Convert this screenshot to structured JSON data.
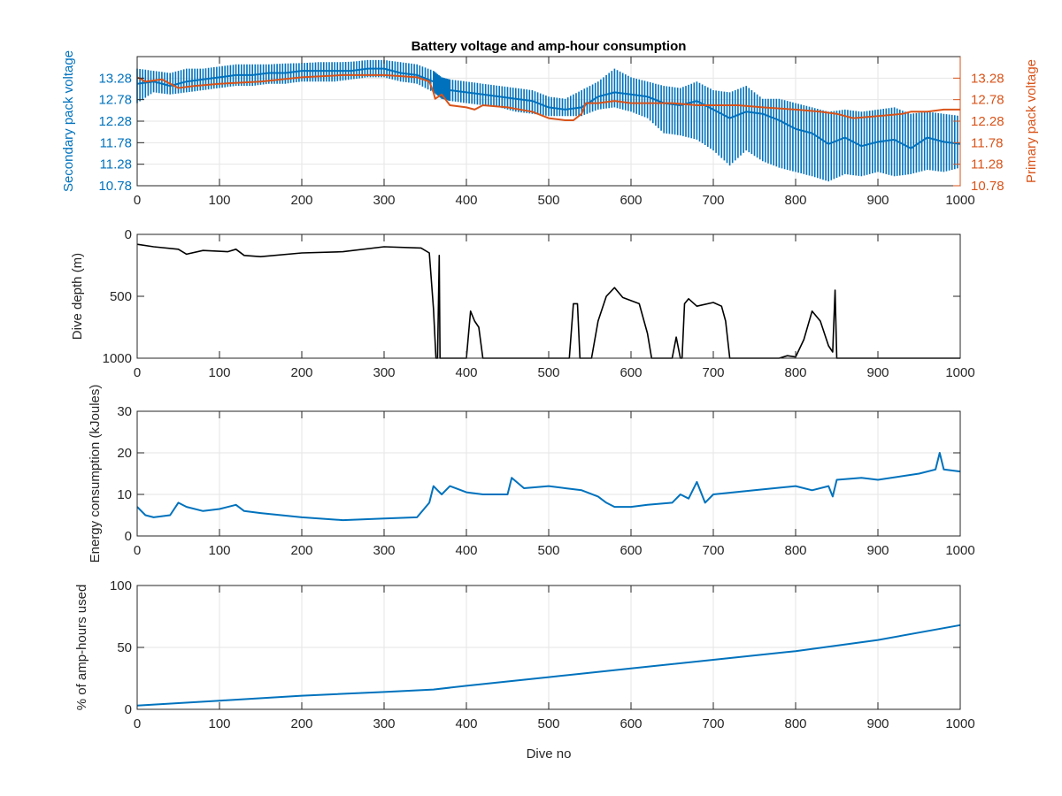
{
  "figure": {
    "title": "Battery voltage and amp-hour consumption"
  },
  "colors": {
    "blue": "#0072BD",
    "orange": "#D95319",
    "black": "#000000",
    "grid": "#e6e6e6",
    "axis": "#262626"
  },
  "chart_data": [
    {
      "type": "line",
      "title": "Battery voltage and amp-hour consumption",
      "xlabel": "",
      "ylabel": "Secondary pack voltage",
      "ylabel_right": "Primary pack voltage",
      "xlim": [
        0,
        1000
      ],
      "ylim": [
        10.78,
        13.78
      ],
      "x_ticks": [
        0,
        100,
        200,
        300,
        400,
        500,
        600,
        700,
        800,
        900,
        1000
      ],
      "y_ticks": [
        10.78,
        11.28,
        11.78,
        12.28,
        12.78,
        13.28
      ],
      "y_ticks_right": [
        10.78,
        11.28,
        11.78,
        12.28,
        12.78,
        13.28
      ],
      "grid": true,
      "series": [
        {
          "name": "",
          "axis": "left",
          "color": "#0072BD",
          "x": [
            0,
            20,
            40,
            60,
            80,
            100,
            120,
            140,
            160,
            180,
            200,
            220,
            240,
            260,
            280,
            300,
            320,
            340,
            360,
            370,
            380,
            400,
            420,
            440,
            460,
            480,
            500,
            520,
            540,
            560,
            580,
            600,
            620,
            640,
            660,
            680,
            700,
            720,
            740,
            760,
            780,
            800,
            820,
            840,
            860,
            880,
            900,
            920,
            940,
            960,
            980,
            1000
          ],
          "y": [
            13.15,
            13.2,
            13.1,
            13.2,
            13.25,
            13.3,
            13.35,
            13.35,
            13.4,
            13.4,
            13.45,
            13.45,
            13.45,
            13.45,
            13.5,
            13.5,
            13.4,
            13.35,
            13.2,
            13.0,
            13.0,
            12.95,
            12.9,
            12.85,
            12.8,
            12.75,
            12.6,
            12.55,
            12.6,
            12.85,
            12.95,
            12.9,
            12.85,
            12.7,
            12.65,
            12.75,
            12.55,
            12.35,
            12.5,
            12.45,
            12.3,
            12.1,
            12.0,
            11.75,
            11.9,
            11.7,
            11.8,
            11.85,
            11.65,
            11.9,
            11.8,
            11.75
          ],
          "y_min": [
            12.7,
            12.95,
            12.9,
            12.95,
            13.0,
            13.05,
            13.1,
            13.1,
            13.15,
            13.15,
            13.2,
            13.2,
            13.2,
            13.25,
            13.3,
            13.3,
            13.2,
            13.15,
            12.95,
            12.8,
            12.75,
            12.7,
            12.65,
            12.6,
            12.5,
            12.45,
            12.4,
            12.4,
            12.4,
            12.55,
            12.6,
            12.5,
            12.35,
            12.0,
            11.95,
            11.85,
            11.6,
            11.25,
            11.6,
            11.35,
            11.2,
            11.1,
            11.0,
            10.88,
            11.05,
            11.0,
            11.1,
            11.0,
            11.05,
            11.15,
            11.1,
            11.2
          ],
          "y_max": [
            13.5,
            13.45,
            13.4,
            13.5,
            13.5,
            13.55,
            13.6,
            13.6,
            13.6,
            13.62,
            13.63,
            13.65,
            13.65,
            13.66,
            13.7,
            13.7,
            13.65,
            13.6,
            13.45,
            13.3,
            13.25,
            13.2,
            13.15,
            13.1,
            13.05,
            13.0,
            12.85,
            12.8,
            13.0,
            13.2,
            13.5,
            13.3,
            13.2,
            13.1,
            13.05,
            13.2,
            13.0,
            12.95,
            13.1,
            12.8,
            12.8,
            12.7,
            12.6,
            12.5,
            12.55,
            12.5,
            12.55,
            12.6,
            12.45,
            12.5,
            12.45,
            12.4
          ]
        },
        {
          "name": "",
          "axis": "right",
          "color": "#D95319",
          "x": [
            0,
            10,
            30,
            50,
            70,
            100,
            150,
            200,
            250,
            300,
            340,
            355,
            360,
            362,
            370,
            380,
            400,
            410,
            420,
            450,
            480,
            500,
            520,
            530,
            540,
            545,
            560,
            580,
            600,
            620,
            650,
            680,
            700,
            730,
            760,
            800,
            830,
            850,
            870,
            900,
            930,
            940,
            960,
            980,
            1000
          ],
          "y": [
            13.3,
            13.2,
            13.25,
            13.05,
            13.1,
            13.15,
            13.2,
            13.3,
            13.35,
            13.35,
            13.3,
            13.2,
            12.95,
            12.8,
            12.9,
            12.65,
            12.6,
            12.55,
            12.65,
            12.6,
            12.5,
            12.35,
            12.3,
            12.3,
            12.45,
            12.7,
            12.7,
            12.75,
            12.7,
            12.7,
            12.7,
            12.65,
            12.65,
            12.65,
            12.6,
            12.55,
            12.5,
            12.45,
            12.35,
            12.4,
            12.45,
            12.5,
            12.5,
            12.55,
            12.55
          ]
        }
      ]
    },
    {
      "type": "line",
      "xlabel": "",
      "ylabel": "Dive depth (m)",
      "xlim": [
        0,
        1000
      ],
      "ylim": [
        1000,
        0
      ],
      "y_reversed": true,
      "x_ticks": [
        0,
        100,
        200,
        300,
        400,
        500,
        600,
        700,
        800,
        900,
        1000
      ],
      "y_ticks": [
        0,
        500,
        1000
      ],
      "grid": false,
      "series": [
        {
          "name": "",
          "color": "#000000",
          "x": [
            0,
            20,
            50,
            60,
            80,
            110,
            120,
            130,
            150,
            200,
            250,
            300,
            345,
            355,
            360,
            363,
            365,
            367,
            368,
            370,
            375,
            400,
            405,
            410,
            415,
            420,
            500,
            525,
            530,
            535,
            538,
            545,
            548,
            550,
            552,
            560,
            570,
            580,
            590,
            610,
            620,
            625,
            650,
            655,
            660,
            662,
            665,
            670,
            680,
            700,
            710,
            715,
            720,
            780,
            790,
            800,
            810,
            820,
            830,
            840,
            845,
            848,
            850,
            860,
            900,
            1000
          ],
          "y": [
            80,
            100,
            120,
            160,
            130,
            140,
            120,
            170,
            180,
            150,
            140,
            100,
            110,
            150,
            600,
            1000,
            1000,
            170,
            1000,
            1000,
            1000,
            1000,
            620,
            700,
            750,
            1000,
            1000,
            1000,
            560,
            560,
            1000,
            1000,
            1000,
            1000,
            1000,
            700,
            500,
            430,
            510,
            560,
            800,
            1000,
            1000,
            830,
            1000,
            1000,
            560,
            520,
            580,
            550,
            580,
            700,
            1000,
            1000,
            980,
            990,
            850,
            620,
            700,
            900,
            950,
            450,
            1000,
            1000,
            1000,
            1000
          ]
        }
      ]
    },
    {
      "type": "line",
      "xlabel": "",
      "ylabel": "Energy consumption (kJoules)",
      "xlim": [
        0,
        1000
      ],
      "ylim": [
        0,
        30
      ],
      "x_ticks": [
        0,
        100,
        200,
        300,
        400,
        500,
        600,
        700,
        800,
        900,
        1000
      ],
      "y_ticks": [
        0,
        10,
        20,
        30
      ],
      "grid": true,
      "series": [
        {
          "name": "",
          "color": "#0072BD",
          "x": [
            0,
            10,
            20,
            40,
            50,
            60,
            80,
            100,
            120,
            130,
            150,
            200,
            250,
            300,
            340,
            355,
            360,
            365,
            370,
            380,
            400,
            420,
            450,
            455,
            470,
            500,
            520,
            540,
            560,
            570,
            580,
            600,
            620,
            650,
            660,
            670,
            680,
            690,
            700,
            750,
            800,
            820,
            840,
            845,
            850,
            880,
            900,
            950,
            970,
            975,
            980,
            1000
          ],
          "y": [
            7,
            5,
            4.5,
            5,
            8,
            7,
            6,
            6.5,
            7.5,
            6,
            5.5,
            4.5,
            3.8,
            4.2,
            4.5,
            8,
            12,
            11,
            10,
            12,
            10.5,
            10,
            10,
            14,
            11.5,
            12,
            11.5,
            11,
            9.5,
            8,
            7,
            7,
            7.5,
            8,
            10,
            9,
            13,
            8,
            10,
            11,
            12,
            11,
            12,
            9.5,
            13.5,
            14,
            13.5,
            15,
            16,
            20,
            16,
            15.5
          ]
        }
      ]
    },
    {
      "type": "line",
      "xlabel": "Dive no",
      "ylabel": "% of amp-hours used",
      "xlim": [
        0,
        1000
      ],
      "ylim": [
        0,
        100
      ],
      "x_ticks": [
        0,
        100,
        200,
        300,
        400,
        500,
        600,
        700,
        800,
        900,
        1000
      ],
      "y_ticks": [
        0,
        50,
        100
      ],
      "grid": true,
      "series": [
        {
          "name": "",
          "color": "#0072BD",
          "x": [
            0,
            100,
            200,
            300,
            360,
            400,
            500,
            600,
            700,
            800,
            900,
            1000
          ],
          "y": [
            3,
            7,
            11,
            14,
            16,
            19,
            26,
            33,
            40,
            47,
            56,
            68
          ]
        }
      ]
    }
  ]
}
